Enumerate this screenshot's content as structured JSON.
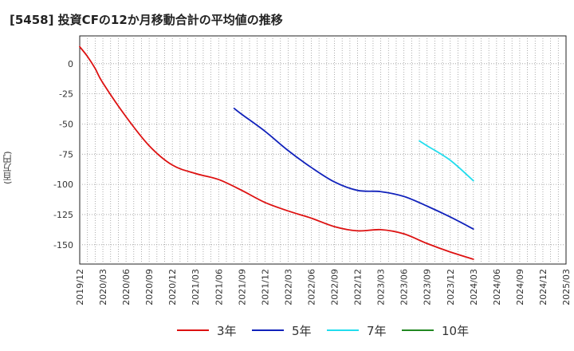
{
  "title": "[5458]  投資CFの12か月移動合計の平均値の推移",
  "chart_data": {
    "type": "line",
    "title": "[5458]  投資CFの12か月移動合計の平均値の推移",
    "ylabel": "(百万円)",
    "xlabel": "",
    "ylim": [
      -166,
      23
    ],
    "yticks": [
      0,
      -25,
      -50,
      -75,
      -100,
      -125,
      -150
    ],
    "x_tick_labels": [
      "2019/12",
      "2020/03",
      "2020/06",
      "2020/09",
      "2020/12",
      "2021/03",
      "2021/06",
      "2021/09",
      "2021/12",
      "2022/03",
      "2022/06",
      "2022/09",
      "2022/12",
      "2023/03",
      "2023/06",
      "2023/09",
      "2023/12",
      "2024/03",
      "2024/06",
      "2024/09",
      "2024/12",
      "2025/03"
    ],
    "grid": true,
    "legend_position": "bottom",
    "series": [
      {
        "name": "3年",
        "color": "#dd1111",
        "points": [
          [
            "2019/12",
            14
          ],
          [
            "2020/01",
            6
          ],
          [
            "2020/02",
            -4
          ],
          [
            "2020/03",
            -16
          ],
          [
            "2020/06",
            -44
          ],
          [
            "2020/09",
            -68
          ],
          [
            "2020/12",
            -84
          ],
          [
            "2021/03",
            -91
          ],
          [
            "2021/06",
            -96
          ],
          [
            "2021/09",
            -105
          ],
          [
            "2021/12",
            -115
          ],
          [
            "2022/03",
            -122
          ],
          [
            "2022/06",
            -128
          ],
          [
            "2022/09",
            -135
          ],
          [
            "2022/12",
            -138.5
          ],
          [
            "2023/03",
            -137.5
          ],
          [
            "2023/06",
            -141
          ],
          [
            "2023/09",
            -149
          ],
          [
            "2023/12",
            -156
          ],
          [
            "2024/03",
            -162
          ]
        ]
      },
      {
        "name": "5年",
        "color": "#1122bb",
        "points": [
          [
            "2021/08",
            -37
          ],
          [
            "2021/09",
            -42
          ],
          [
            "2021/12",
            -56
          ],
          [
            "2022/03",
            -72
          ],
          [
            "2022/06",
            -86
          ],
          [
            "2022/09",
            -98
          ],
          [
            "2022/12",
            -105
          ],
          [
            "2023/03",
            -106
          ],
          [
            "2023/06",
            -110
          ],
          [
            "2023/09",
            -118
          ],
          [
            "2023/12",
            -127
          ],
          [
            "2024/03",
            -137
          ]
        ]
      },
      {
        "name": "7年",
        "color": "#22ddee",
        "points": [
          [
            "2023/08",
            -64
          ],
          [
            "2023/09",
            -68
          ],
          [
            "2023/12",
            -80
          ],
          [
            "2024/03",
            -97
          ]
        ]
      },
      {
        "name": "10年",
        "color": "#228822",
        "points": []
      }
    ]
  }
}
